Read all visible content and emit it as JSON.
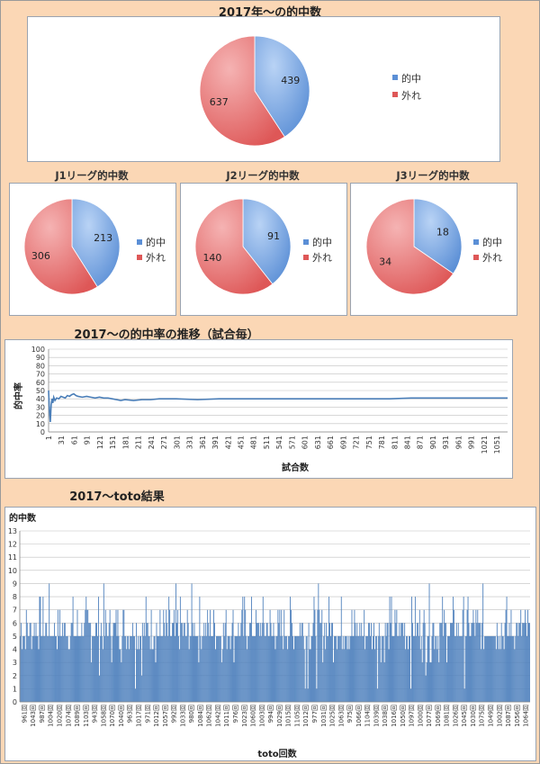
{
  "colors": {
    "hit": "#5b8fd6",
    "miss": "#de5757",
    "line": "#4a7eb8",
    "bar": "#4f81bd",
    "grid": "#bfbfbf"
  },
  "chart_data": [
    {
      "type": "pie",
      "title": "2017年～の的中数",
      "slices": [
        {
          "name": "的中",
          "value": 439
        },
        {
          "name": "外れ",
          "value": 637
        }
      ]
    },
    {
      "type": "pie",
      "title": "J1リーグ的中数",
      "slices": [
        {
          "name": "的中",
          "value": 213
        },
        {
          "name": "外れ",
          "value": 306
        }
      ]
    },
    {
      "type": "pie",
      "title": "J2リーグ的中数",
      "slices": [
        {
          "name": "的中",
          "value": 91
        },
        {
          "name": "外れ",
          "value": 140
        }
      ]
    },
    {
      "type": "pie",
      "title": "J3リーグ的中数",
      "slices": [
        {
          "name": "的中",
          "value": 18
        },
        {
          "name": "外れ",
          "value": 34
        }
      ]
    },
    {
      "type": "line",
      "title": "2017～の的中率の推移（試合毎）",
      "xlabel": "試合数",
      "ylabel": "的中率",
      "ylim": [
        0,
        100
      ],
      "yticks": [
        0,
        10,
        20,
        30,
        40,
        50,
        60,
        70,
        80,
        90,
        100
      ],
      "xticks": [
        1,
        31,
        61,
        91,
        121,
        151,
        181,
        211,
        241,
        271,
        301,
        331,
        361,
        391,
        421,
        451,
        481,
        511,
        541,
        571,
        601,
        631,
        661,
        691,
        721,
        751,
        781,
        811,
        841,
        871,
        901,
        931,
        961,
        991,
        1021,
        1051
      ],
      "xmax": 1076,
      "series": [
        {
          "x": [
            1,
            3,
            5,
            7,
            9,
            11,
            13,
            16,
            20,
            25,
            30,
            35,
            40,
            45,
            50,
            55,
            60,
            65,
            70,
            80,
            90,
            100,
            110,
            120,
            130,
            140,
            150,
            160,
            170,
            180,
            200,
            220,
            240,
            260,
            300,
            350,
            400,
            450,
            500,
            550,
            600,
            650,
            700,
            750,
            800,
            850,
            900,
            950,
            1000,
            1050,
            1076
          ],
          "y": [
            50,
            25,
            12,
            33,
            40,
            35,
            42,
            38,
            41,
            40,
            43,
            42,
            41,
            44,
            43,
            45,
            46,
            44,
            43,
            42,
            43,
            42,
            41,
            42,
            41,
            41,
            40,
            39,
            38,
            39,
            38,
            39,
            39,
            40,
            40,
            39,
            40,
            40,
            40,
            40,
            40,
            40,
            40,
            40,
            40,
            41,
            41,
            41,
            41,
            41,
            41
          ]
        }
      ]
    },
    {
      "type": "bar",
      "title": "2017～toto結果",
      "xlabel": "toto回数",
      "ylabel": "的中数",
      "ylim": [
        0,
        13
      ],
      "yticks": [
        0,
        1,
        2,
        3,
        4,
        5,
        6,
        7,
        8,
        9,
        10,
        11,
        12,
        13
      ],
      "tick_labels": [
        "961回",
        "1043回",
        "987回",
        "1004回",
        "1020回",
        "1074回",
        "1089回",
        "1103回",
        "943回",
        "1058回",
        "1070回",
        "1040回",
        "963回",
        "1017回",
        "971回",
        "1012回",
        "1057回",
        "992回",
        "1033回",
        "980回",
        "1084回",
        "1062回",
        "1042回",
        "1011回",
        "976回",
        "1023回",
        "1060回",
        "1003回",
        "994回",
        "1029回",
        "1015回",
        "1105回",
        "1012回",
        "977回",
        "1031回",
        "1025回",
        "1063回",
        "975回",
        "1066回",
        "1104回",
        "1039回",
        "1038回",
        "1016回",
        "1050回",
        "1097回",
        "1000回",
        "1077回",
        "1069回",
        "1081回",
        "1026回",
        "1045回",
        "1030回",
        "1075回",
        "1049回",
        "1002回",
        "1087回",
        "1056回",
        "1064回"
      ],
      "n_bars": 580,
      "base_level": 5,
      "hit_max": 9
    }
  ],
  "legend": {
    "hit": "的中",
    "miss": "外れ"
  }
}
